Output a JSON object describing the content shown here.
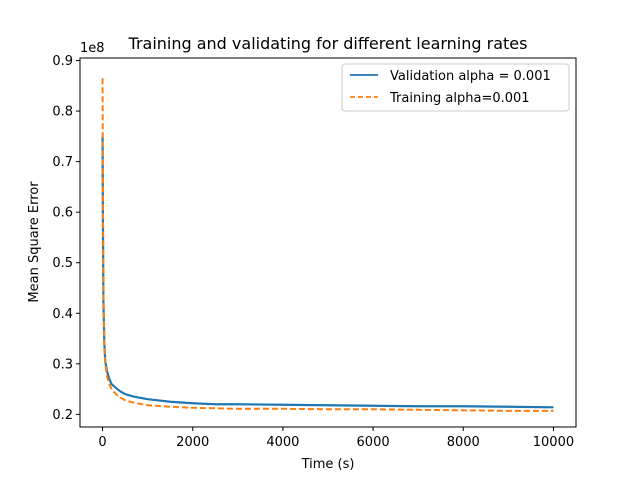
{
  "chart_data": {
    "type": "line",
    "title": "Training and validating for different learning rates",
    "xlabel": "Time (s)",
    "ylabel": "Mean Square Error",
    "y_offset_label": "1e8",
    "xlim": [
      -500,
      10500
    ],
    "ylim": [
      0.175,
      0.905
    ],
    "y_scale_factor": 100000000,
    "xticks": [
      0,
      2000,
      4000,
      6000,
      8000,
      10000
    ],
    "xtick_labels": [
      "0",
      "2000",
      "4000",
      "6000",
      "8000",
      "10000"
    ],
    "yticks": [
      0.2,
      0.3,
      0.4,
      0.5,
      0.6,
      0.7,
      0.8,
      0.9
    ],
    "ytick_labels": [
      "0.2",
      "0.3",
      "0.4",
      "0.5",
      "0.6",
      "0.7",
      "0.8",
      "0.9"
    ],
    "grid": false,
    "legend_position": "top-right",
    "series": [
      {
        "name": "Validation alpha = 0.001",
        "color": "#1f77b4",
        "style": "solid",
        "x": [
          0,
          10,
          20,
          40,
          60,
          100,
          150,
          200,
          300,
          400,
          500,
          700,
          1000,
          1500,
          2000,
          2500,
          3000,
          4000,
          5000,
          6000,
          7000,
          8000,
          9000,
          10000
        ],
        "y": [
          0.75,
          0.55,
          0.42,
          0.34,
          0.305,
          0.285,
          0.27,
          0.26,
          0.252,
          0.245,
          0.24,
          0.235,
          0.23,
          0.225,
          0.222,
          0.22,
          0.22,
          0.219,
          0.218,
          0.217,
          0.216,
          0.216,
          0.215,
          0.214
        ]
      },
      {
        "name": "Training alpha=0.001",
        "color": "#ff7f0e",
        "style": "dashed",
        "x": [
          0,
          10,
          20,
          40,
          60,
          100,
          150,
          200,
          300,
          400,
          500,
          700,
          1000,
          1500,
          2000,
          2500,
          3000,
          4000,
          5000,
          6000,
          7000,
          8000,
          9000,
          10000
        ],
        "y": [
          0.865,
          0.6,
          0.44,
          0.34,
          0.3,
          0.275,
          0.26,
          0.25,
          0.24,
          0.233,
          0.228,
          0.223,
          0.218,
          0.215,
          0.213,
          0.212,
          0.211,
          0.211,
          0.21,
          0.21,
          0.209,
          0.208,
          0.207,
          0.207
        ]
      }
    ]
  }
}
